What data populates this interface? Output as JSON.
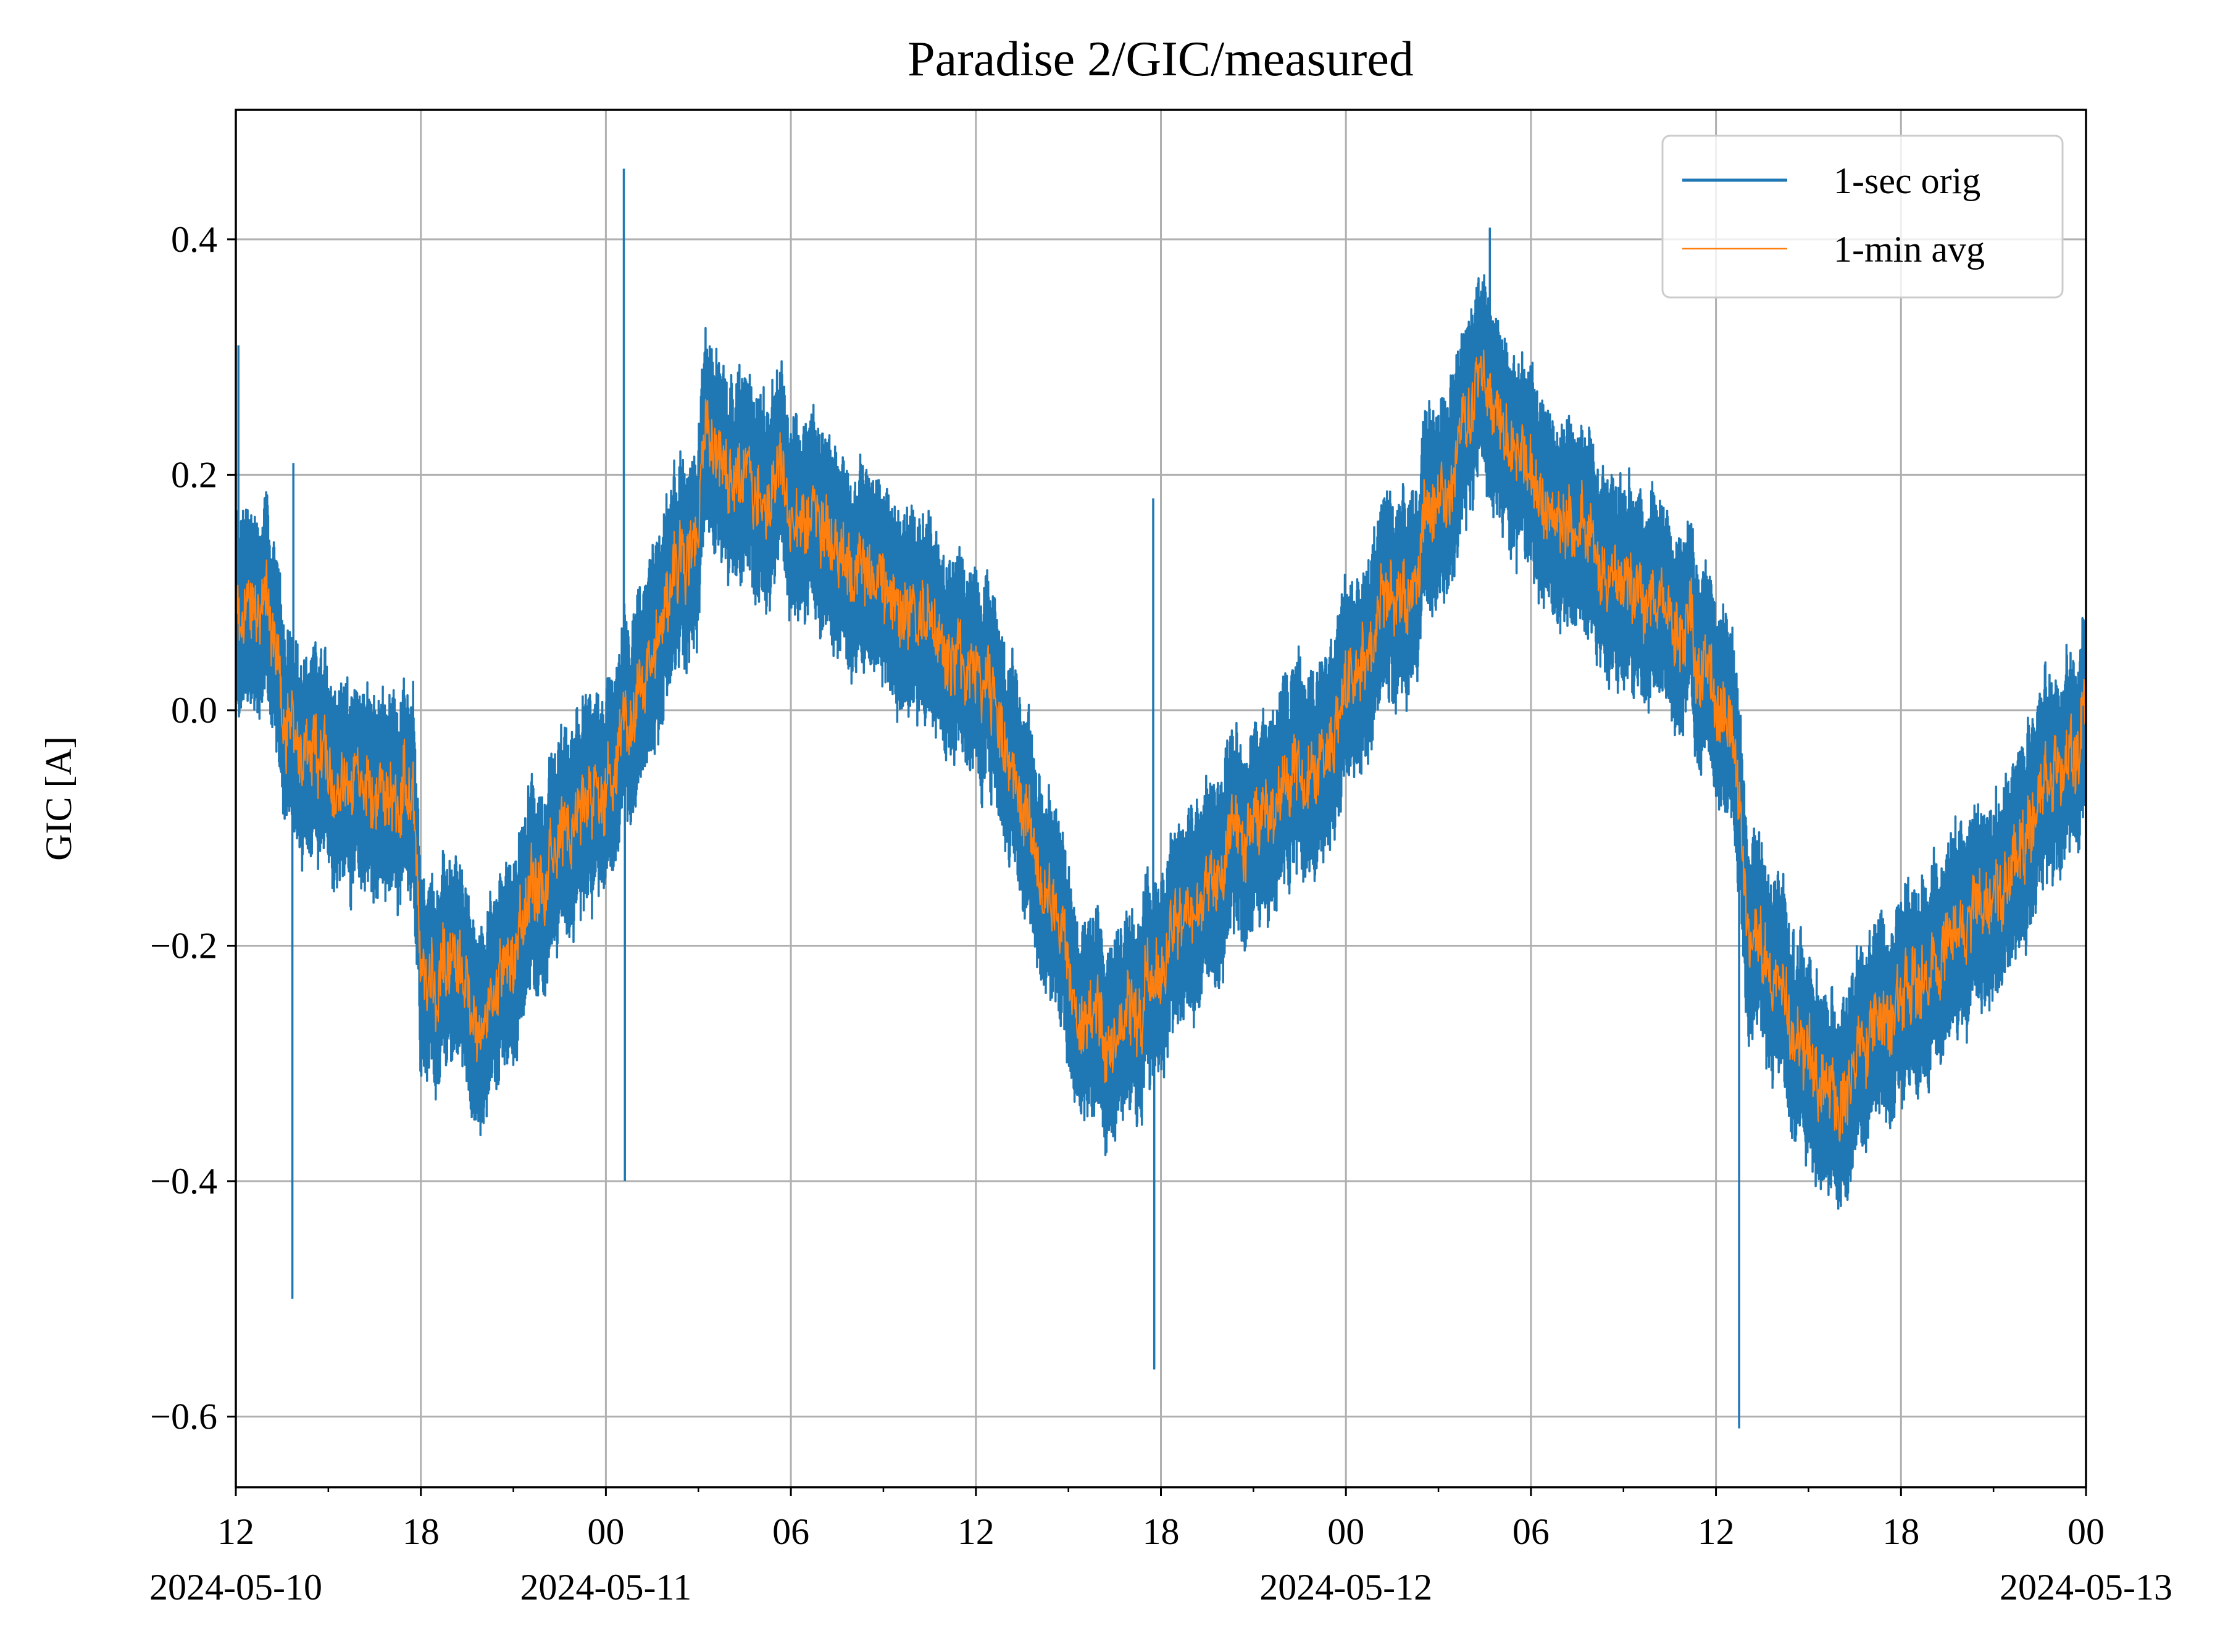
{
  "chart_data": {
    "type": "line",
    "title": "Paradise 2/GIC/measured",
    "xlabel": "",
    "ylabel": "GIC [A]",
    "x_range": [
      "2024-05-10T12:00",
      "2024-05-13T00:00"
    ],
    "ylim": [
      -0.66,
      0.51
    ],
    "grid": true,
    "legend_position": "top-right",
    "y_ticks": [
      {
        "value": -0.6,
        "label": "−0.6"
      },
      {
        "value": -0.4,
        "label": "−0.4"
      },
      {
        "value": -0.2,
        "label": "−0.2"
      },
      {
        "value": 0.0,
        "label": "0.0"
      },
      {
        "value": 0.2,
        "label": "0.2"
      },
      {
        "value": 0.4,
        "label": "0.4"
      }
    ],
    "x_major_ticks": [
      {
        "time": "2024-05-10T12:00",
        "label": "12",
        "date_label": "2024-05-10"
      },
      {
        "time": "2024-05-10T18:00",
        "label": "18",
        "date_label": ""
      },
      {
        "time": "2024-05-11T00:00",
        "label": "00",
        "date_label": "2024-05-11"
      },
      {
        "time": "2024-05-11T06:00",
        "label": "06",
        "date_label": ""
      },
      {
        "time": "2024-05-11T12:00",
        "label": "12",
        "date_label": ""
      },
      {
        "time": "2024-05-11T18:00",
        "label": "18",
        "date_label": ""
      },
      {
        "time": "2024-05-12T00:00",
        "label": "00",
        "date_label": "2024-05-12"
      },
      {
        "time": "2024-05-12T06:00",
        "label": "06",
        "date_label": ""
      },
      {
        "time": "2024-05-12T12:00",
        "label": "12",
        "date_label": ""
      },
      {
        "time": "2024-05-12T18:00",
        "label": "18",
        "date_label": ""
      },
      {
        "time": "2024-05-13T00:00",
        "label": "00",
        "date_label": "2024-05-13"
      }
    ],
    "x_minor_ticks": [
      "2024-05-10T15:00",
      "2024-05-10T21:00",
      "2024-05-11T03:00",
      "2024-05-11T09:00",
      "2024-05-11T15:00",
      "2024-05-11T21:00",
      "2024-05-12T03:00",
      "2024-05-12T09:00",
      "2024-05-12T15:00",
      "2024-05-12T21:00"
    ],
    "series": [
      {
        "name": "1-sec orig",
        "color": "#1f77b4",
        "band_width": 0.17,
        "center": [
          {
            "t": "2024-05-10T12:00",
            "y": 0.08
          },
          {
            "t": "2024-05-10T13:00",
            "y": 0.1
          },
          {
            "t": "2024-05-10T13:30",
            "y": 0.0
          },
          {
            "t": "2024-05-10T14:00",
            "y": -0.04
          },
          {
            "t": "2024-05-10T15:00",
            "y": -0.05
          },
          {
            "t": "2024-05-10T16:00",
            "y": -0.06
          },
          {
            "t": "2024-05-10T17:00",
            "y": -0.08
          },
          {
            "t": "2024-05-10T17:45",
            "y": -0.08
          },
          {
            "t": "2024-05-10T18:00",
            "y": -0.24
          },
          {
            "t": "2024-05-10T19:00",
            "y": -0.21
          },
          {
            "t": "2024-05-10T20:00",
            "y": -0.27
          },
          {
            "t": "2024-05-10T21:00",
            "y": -0.2
          },
          {
            "t": "2024-05-10T22:00",
            "y": -0.14
          },
          {
            "t": "2024-05-10T23:00",
            "y": -0.1
          },
          {
            "t": "2024-05-11T00:00",
            "y": -0.06
          },
          {
            "t": "2024-05-11T01:00",
            "y": 0.02
          },
          {
            "t": "2024-05-11T02:00",
            "y": 0.1
          },
          {
            "t": "2024-05-11T03:00",
            "y": 0.14
          },
          {
            "t": "2024-05-11T03:15",
            "y": 0.24
          },
          {
            "t": "2024-05-11T04:00",
            "y": 0.21
          },
          {
            "t": "2024-05-11T05:00",
            "y": 0.19
          },
          {
            "t": "2024-05-11T06:00",
            "y": 0.17
          },
          {
            "t": "2024-05-11T07:00",
            "y": 0.16
          },
          {
            "t": "2024-05-11T08:00",
            "y": 0.12
          },
          {
            "t": "2024-05-11T09:00",
            "y": 0.1
          },
          {
            "t": "2024-05-11T10:00",
            "y": 0.08
          },
          {
            "t": "2024-05-11T11:00",
            "y": 0.07
          },
          {
            "t": "2024-05-11T12:00",
            "y": 0.02
          },
          {
            "t": "2024-05-11T13:00",
            "y": -0.02
          },
          {
            "t": "2024-05-11T14:00",
            "y": -0.12
          },
          {
            "t": "2024-05-11T15:00",
            "y": -0.22
          },
          {
            "t": "2024-05-11T16:00",
            "y": -0.26
          },
          {
            "t": "2024-05-11T17:00",
            "y": -0.27
          },
          {
            "t": "2024-05-11T18:00",
            "y": -0.22
          },
          {
            "t": "2024-05-11T19:00",
            "y": -0.17
          },
          {
            "t": "2024-05-11T20:00",
            "y": -0.14
          },
          {
            "t": "2024-05-11T21:00",
            "y": -0.09
          },
          {
            "t": "2024-05-11T22:00",
            "y": -0.07
          },
          {
            "t": "2024-05-11T23:00",
            "y": -0.04
          },
          {
            "t": "2024-05-12T00:00",
            "y": 0.02
          },
          {
            "t": "2024-05-12T01:00",
            "y": 0.07
          },
          {
            "t": "2024-05-12T02:00",
            "y": 0.1
          },
          {
            "t": "2024-05-12T03:00",
            "y": 0.18
          },
          {
            "t": "2024-05-12T04:00",
            "y": 0.25
          },
          {
            "t": "2024-05-12T04:30",
            "y": 0.3
          },
          {
            "t": "2024-05-12T05:00",
            "y": 0.24
          },
          {
            "t": "2024-05-12T06:00",
            "y": 0.21
          },
          {
            "t": "2024-05-12T07:00",
            "y": 0.17
          },
          {
            "t": "2024-05-12T08:00",
            "y": 0.14
          },
          {
            "t": "2024-05-12T09:00",
            "y": 0.12
          },
          {
            "t": "2024-05-12T10:00",
            "y": 0.1
          },
          {
            "t": "2024-05-12T11:00",
            "y": 0.07
          },
          {
            "t": "2024-05-12T12:00",
            "y": 0.02
          },
          {
            "t": "2024-05-12T12:45",
            "y": -0.05
          },
          {
            "t": "2024-05-12T13:00",
            "y": -0.18
          },
          {
            "t": "2024-05-12T14:00",
            "y": -0.24
          },
          {
            "t": "2024-05-12T15:00",
            "y": -0.3
          },
          {
            "t": "2024-05-12T16:00",
            "y": -0.33
          },
          {
            "t": "2024-05-12T17:00",
            "y": -0.29
          },
          {
            "t": "2024-05-12T18:00",
            "y": -0.25
          },
          {
            "t": "2024-05-12T19:00",
            "y": -0.22
          },
          {
            "t": "2024-05-12T20:00",
            "y": -0.18
          },
          {
            "t": "2024-05-12T21:00",
            "y": -0.15
          },
          {
            "t": "2024-05-12T22:00",
            "y": -0.1
          },
          {
            "t": "2024-05-12T23:00",
            "y": -0.05
          },
          {
            "t": "2024-05-13T00:00",
            "y": -0.01
          }
        ],
        "spikes": [
          {
            "t": "2024-05-10T12:05",
            "y": 0.31
          },
          {
            "t": "2024-05-10T13:50",
            "y": -0.5
          },
          {
            "t": "2024-05-10T13:52",
            "y": 0.21
          },
          {
            "t": "2024-05-11T00:35",
            "y": 0.46
          },
          {
            "t": "2024-05-11T00:37",
            "y": -0.4
          },
          {
            "t": "2024-05-11T17:45",
            "y": 0.18
          },
          {
            "t": "2024-05-11T17:47",
            "y": -0.56
          },
          {
            "t": "2024-05-12T12:45",
            "y": -0.61
          },
          {
            "t": "2024-05-12T04:40",
            "y": 0.41
          }
        ]
      },
      {
        "name": "1-min avg",
        "color": "#ff7f0e"
      }
    ]
  }
}
